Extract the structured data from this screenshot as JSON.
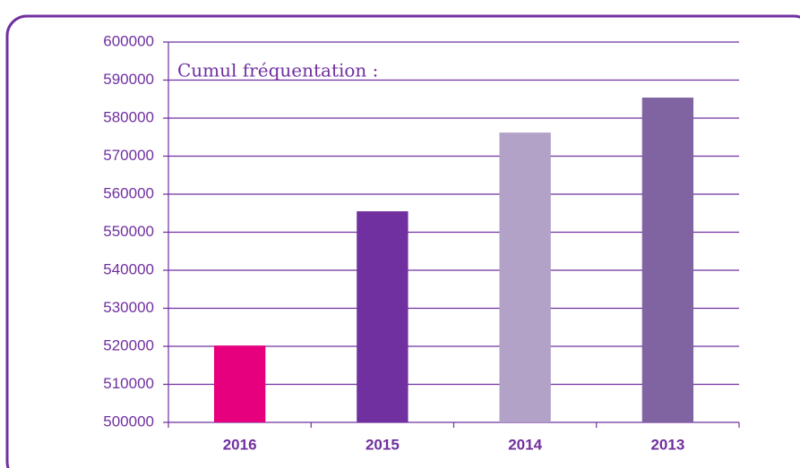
{
  "chart_data": {
    "type": "bar",
    "title": "Cumul fréquentation :",
    "categories": [
      "2016",
      "2015",
      "2014",
      "2013"
    ],
    "values": [
      520200,
      555500,
      576200,
      585400
    ],
    "colors": [
      "#e6007e",
      "#7030a0",
      "#b3a2c7",
      "#8064a2"
    ],
    "ylim": [
      500000,
      600000
    ],
    "yticks": [
      500000,
      510000,
      520000,
      530000,
      540000,
      550000,
      560000,
      570000,
      580000,
      590000,
      600000
    ],
    "grid": true
  }
}
